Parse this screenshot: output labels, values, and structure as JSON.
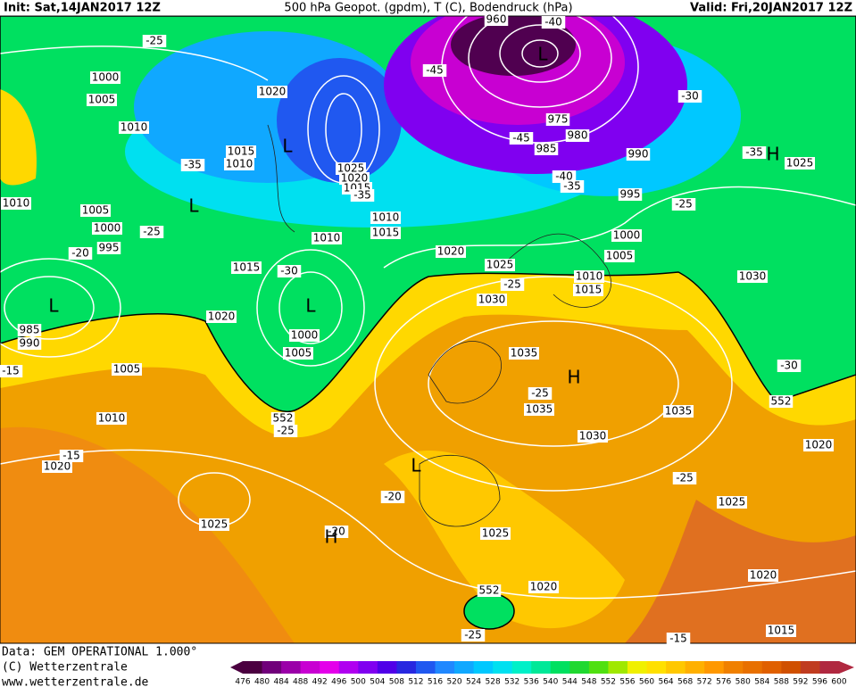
{
  "header": {
    "init": "Init: Sat,14JAN2017 12Z",
    "title": "500 hPa Geopot. (gpdm), T (C), Bodendruck (hPa)",
    "valid": "Valid: Fri,20JAN2017 12Z"
  },
  "map": {
    "labels": [
      "1000",
      "1005",
      "1010",
      "1020",
      "1015",
      "1010",
      "1025",
      "1020",
      "1015",
      "-35",
      "1010",
      "1015",
      "1010",
      "1015",
      "-30",
      "1020",
      "1000",
      "1005",
      "1010",
      "1005",
      "1000",
      "995",
      "-25",
      "-20",
      "985",
      "990",
      "-15",
      "1005",
      "1010",
      "552",
      "-25",
      "1020",
      "-15",
      "1025",
      "-20",
      "-20",
      "1020",
      "1025",
      "-25",
      "1030",
      "1035",
      "-25",
      "1035",
      "1030",
      "1010",
      "1015",
      "1005",
      "1000",
      "995",
      "990",
      "985",
      "980",
      "975",
      "-45",
      "-45",
      "960",
      "-40",
      "-40",
      "-35",
      "-30",
      "-25",
      "-35",
      "1025",
      "1030",
      "-30",
      "552",
      "1035",
      "1020",
      "-25",
      "1025",
      "1020",
      "1015",
      "1025",
      "1020",
      "552",
      "-25",
      "-15",
      "-25",
      "-35"
    ],
    "centers": [
      "L",
      "L",
      "L",
      "L",
      "L",
      "H",
      "L",
      "H",
      "H"
    ]
  },
  "colorbar": {
    "ticks": [
      476,
      480,
      484,
      488,
      492,
      496,
      500,
      504,
      508,
      512,
      516,
      520,
      524,
      528,
      532,
      536,
      540,
      544,
      548,
      552,
      556,
      560,
      564,
      568,
      572,
      576,
      580,
      584,
      588,
      592,
      596,
      600
    ],
    "colors": [
      "#4b0040",
      "#70007a",
      "#9a00a8",
      "#c800d2",
      "#e400ea",
      "#b000f0",
      "#8000f0",
      "#5000e8",
      "#2828e0",
      "#2058f0",
      "#2088ff",
      "#10a8ff",
      "#00c8ff",
      "#00e0f0",
      "#00f0c8",
      "#00e898",
      "#00e060",
      "#20d830",
      "#50e010",
      "#a0e800",
      "#f0f000",
      "#ffe000",
      "#ffc800",
      "#ffb000",
      "#ff9800",
      "#f08000",
      "#e87000",
      "#e06000",
      "#d05000",
      "#c03c20",
      "#b02840"
    ]
  },
  "footer": {
    "source": "Data: GEM OPERATIONAL 1.000°",
    "copyright": "(C) Wetterzentrale",
    "url": "www.wetterzentrale.de"
  }
}
